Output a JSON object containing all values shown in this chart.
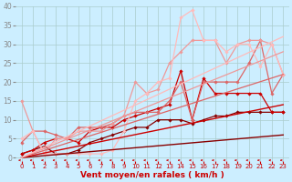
{
  "background_color": "#cceeff",
  "grid_color": "#aacccc",
  "xlabel": "Vent moyen/en rafales ( km/h )",
  "xlabel_color": "#cc0000",
  "xlabel_fontsize": 6.5,
  "xtick_fontsize": 5,
  "ytick_fontsize": 5.5,
  "xlim": [
    -0.5,
    23.5
  ],
  "ylim": [
    -1,
    40
  ],
  "yticks": [
    0,
    5,
    10,
    15,
    20,
    25,
    30,
    35,
    40
  ],
  "xticks": [
    0,
    1,
    2,
    3,
    4,
    5,
    6,
    7,
    8,
    9,
    10,
    11,
    12,
    13,
    14,
    15,
    16,
    17,
    18,
    19,
    20,
    21,
    22,
    23
  ],
  "lines": [
    {
      "x": [
        0,
        1,
        2,
        3,
        4,
        5,
        6,
        7,
        8,
        9,
        10,
        11,
        12,
        13,
        14,
        15,
        16,
        17,
        18,
        19,
        20,
        21,
        22,
        23
      ],
      "y": [
        1,
        2,
        3,
        1,
        1,
        2,
        4,
        5,
        6,
        7,
        8,
        8,
        10,
        10,
        10,
        9,
        10,
        11,
        11,
        12,
        12,
        12,
        12,
        12
      ],
      "color": "#880000",
      "lw": 0.9,
      "marker": "D",
      "ms": 1.8
    },
    {
      "x": [
        0,
        1,
        2,
        3,
        4,
        5,
        6,
        7,
        8,
        9,
        10,
        11,
        12,
        13,
        14,
        15,
        16,
        17,
        18,
        19,
        20,
        21,
        22,
        23
      ],
      "y": [
        1,
        2,
        4,
        5,
        5,
        4,
        7,
        8,
        8,
        10,
        11,
        12,
        13,
        14,
        23,
        10,
        21,
        17,
        17,
        17,
        17,
        17,
        12,
        12
      ],
      "color": "#cc0000",
      "lw": 0.9,
      "marker": "D",
      "ms": 1.8
    },
    {
      "x": [
        0,
        1,
        2,
        3,
        4,
        5,
        6,
        7,
        8,
        9,
        10,
        11,
        12,
        13,
        14,
        15,
        16,
        17,
        18,
        19,
        20,
        21,
        22,
        23
      ],
      "y": [
        4,
        7,
        7,
        6,
        5,
        8,
        8,
        8,
        9,
        11,
        12,
        12,
        12,
        15,
        20,
        10,
        20,
        20,
        20,
        20,
        25,
        31,
        17,
        22
      ],
      "color": "#dd6666",
      "lw": 0.9,
      "marker": "D",
      "ms": 1.8
    },
    {
      "x": [
        0,
        1,
        2,
        3,
        4,
        5,
        6,
        7,
        8,
        9,
        10,
        11,
        12,
        13,
        14,
        15,
        16,
        17,
        18,
        19,
        20,
        21,
        22,
        23
      ],
      "y": [
        15,
        7,
        1,
        5,
        5,
        7,
        7,
        7,
        9,
        11,
        20,
        17,
        18,
        25,
        28,
        31,
        31,
        31,
        25,
        30,
        31,
        31,
        30,
        22
      ],
      "color": "#ee9999",
      "lw": 0.9,
      "marker": "D",
      "ms": 1.8
    },
    {
      "x": [
        0,
        1,
        2,
        3,
        4,
        5,
        6,
        7,
        8,
        9,
        10,
        11,
        12,
        13,
        14,
        15,
        16,
        17,
        18,
        19,
        20,
        21,
        22,
        23
      ],
      "y": [
        5,
        7,
        1,
        1,
        1,
        1,
        1,
        1,
        2,
        7,
        15,
        17,
        20,
        21,
        37,
        39,
        31,
        31,
        28,
        30,
        30,
        24,
        30,
        22
      ],
      "color": "#ffbbbb",
      "lw": 0.9,
      "marker": "D",
      "ms": 1.8
    },
    {
      "x": [
        0,
        23
      ],
      "y": [
        0,
        6
      ],
      "color": "#880000",
      "lw": 1.0,
      "marker": null,
      "ms": 0
    },
    {
      "x": [
        0,
        23
      ],
      "y": [
        0,
        14
      ],
      "color": "#cc0000",
      "lw": 1.0,
      "marker": null,
      "ms": 0
    },
    {
      "x": [
        0,
        23
      ],
      "y": [
        0,
        22
      ],
      "color": "#dd6666",
      "lw": 0.9,
      "marker": null,
      "ms": 0
    },
    {
      "x": [
        0,
        23
      ],
      "y": [
        0,
        28
      ],
      "color": "#ee9999",
      "lw": 0.9,
      "marker": null,
      "ms": 0
    },
    {
      "x": [
        0,
        23
      ],
      "y": [
        0,
        32
      ],
      "color": "#ffbbbb",
      "lw": 0.9,
      "marker": null,
      "ms": 0
    }
  ]
}
